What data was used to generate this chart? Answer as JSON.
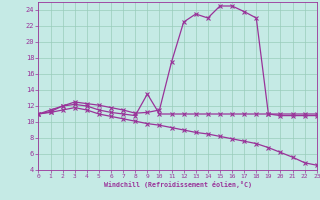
{
  "xlabel": "Windchill (Refroidissement éolien,°C)",
  "bg_color": "#c5eae5",
  "line_color": "#993399",
  "grid_color": "#99ccbb",
  "xlim": [
    0,
    23
  ],
  "ylim": [
    4,
    25
  ],
  "yticks": [
    4,
    6,
    8,
    10,
    12,
    14,
    16,
    18,
    20,
    22,
    24
  ],
  "xticks": [
    0,
    1,
    2,
    3,
    4,
    5,
    6,
    7,
    8,
    9,
    10,
    11,
    12,
    13,
    14,
    15,
    16,
    17,
    18,
    19,
    20,
    21,
    22,
    23
  ],
  "curve1_x": [
    0,
    1,
    2,
    3,
    4,
    5,
    6,
    7,
    8,
    9,
    10,
    11,
    12,
    13,
    14,
    15,
    16,
    17,
    18,
    19,
    20,
    21,
    22,
    23
  ],
  "curve1_y": [
    11.0,
    11.5,
    12.0,
    12.5,
    12.3,
    12.1,
    11.8,
    11.5,
    11.1,
    11.2,
    11.5,
    17.5,
    22.5,
    23.5,
    23.0,
    24.5,
    24.5,
    23.8,
    23.0,
    11.0,
    11.0,
    11.0,
    11.0,
    11.0
  ],
  "curve2_x": [
    0,
    1,
    2,
    3,
    4,
    5,
    6,
    7,
    8,
    9,
    10,
    11,
    12,
    13,
    14,
    15,
    16,
    17,
    18,
    19,
    20,
    21,
    22,
    23
  ],
  "curve2_y": [
    11.0,
    11.3,
    12.0,
    12.2,
    12.0,
    11.5,
    11.2,
    11.0,
    10.8,
    13.5,
    11.0,
    11.0,
    11.0,
    11.0,
    11.0,
    11.0,
    11.0,
    11.0,
    11.0,
    11.0,
    10.8,
    10.8,
    10.8,
    10.8
  ],
  "curve3_x": [
    0,
    1,
    2,
    3,
    4,
    5,
    6,
    7,
    8,
    9,
    10,
    11,
    12,
    13,
    14,
    15,
    16,
    17,
    18,
    19,
    20,
    21,
    22,
    23
  ],
  "curve3_y": [
    11.0,
    11.2,
    11.5,
    11.8,
    11.5,
    11.0,
    10.7,
    10.4,
    10.1,
    9.8,
    9.6,
    9.3,
    9.0,
    8.7,
    8.5,
    8.2,
    7.9,
    7.6,
    7.3,
    6.8,
    6.2,
    5.6,
    4.9,
    4.6
  ]
}
